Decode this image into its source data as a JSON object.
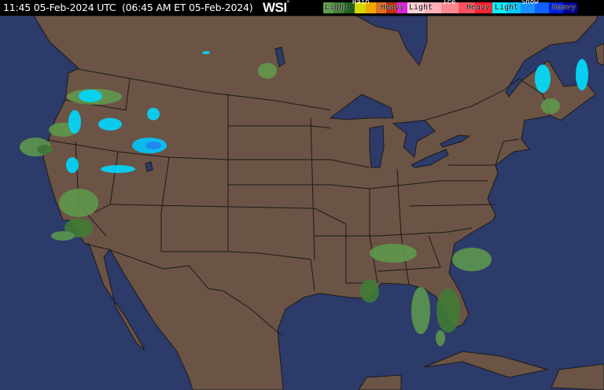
{
  "header": {
    "timestamp": "11:45 05-Feb-2024 UTC  (06:45 AM ET 05-Feb-2024)",
    "logo": "WSI",
    "logo_mark": "°"
  },
  "legend": {
    "rain": {
      "title": "Rain",
      "light": "Light",
      "heavy": "Heavy",
      "colors": [
        "#5f9c4c",
        "#3f7f35",
        "#1f5e1f",
        "#d8d800",
        "#f0a800",
        "#e07020",
        "#c03010",
        "#e020e0"
      ]
    },
    "ice": {
      "title": "Ice",
      "light": "Light",
      "heavy": "Heavy",
      "colors": [
        "#ffd0d8",
        "#ffb0b8",
        "#ff8890",
        "#ff5060",
        "#ff2030"
      ]
    },
    "snow": {
      "title": "Snow",
      "light": "Light",
      "heavy": "Heavy",
      "colors": [
        "#00f0ff",
        "#00c8ff",
        "#1890ff",
        "#1060ff",
        "#0020e0",
        "#000090"
      ]
    }
  },
  "colors": {
    "land": "#6b5445",
    "water": "#2c3b69",
    "border": "#1a1a1a"
  }
}
